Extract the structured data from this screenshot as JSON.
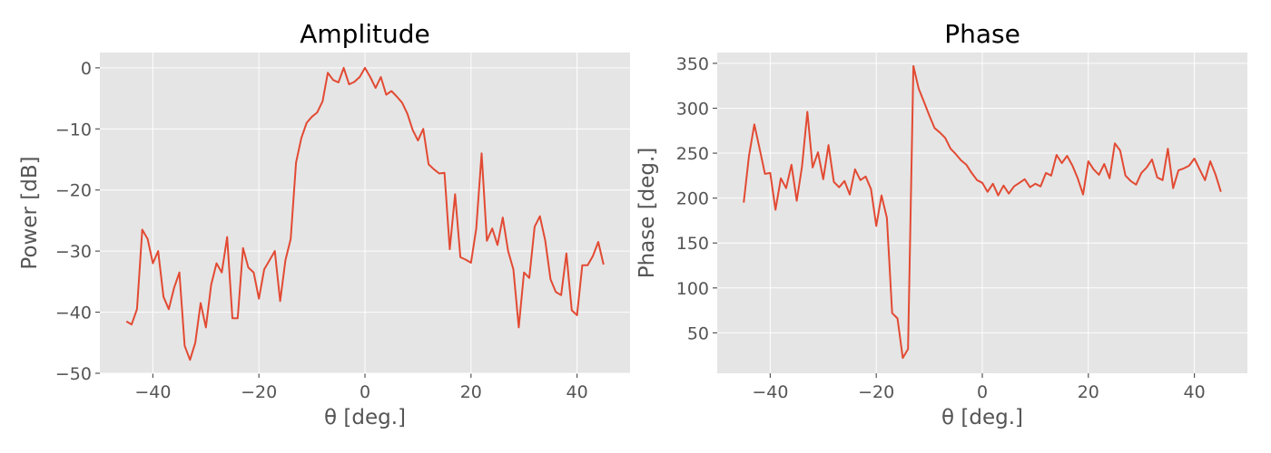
{
  "chart_data": [
    {
      "type": "line",
      "title": "Amplitude",
      "xlabel": "θ [deg.]",
      "ylabel": "Power [dB]",
      "xlim": [
        -50,
        50
      ],
      "ylim": [
        -50,
        2.5
      ],
      "xticks": [
        -40,
        -20,
        0,
        20,
        40
      ],
      "xtick_labels": [
        "−40",
        "−20",
        "0",
        "20",
        "40"
      ],
      "yticks": [
        0,
        -10,
        -20,
        -30,
        -40,
        -50
      ],
      "ytick_labels": [
        "0",
        "−10",
        "−20",
        "−30",
        "−40",
        "−50"
      ],
      "grid": true,
      "color": "#e24a33",
      "series": [
        {
          "x": [
            -45,
            -44,
            -43,
            -42,
            -41,
            -40,
            -39,
            -38,
            -37,
            -36,
            -35,
            -34,
            -33,
            -32,
            -31,
            -30,
            -29,
            -28,
            -27,
            -26,
            -25,
            -24,
            -23,
            -22,
            -21,
            -20,
            -19,
            -18,
            -17,
            -16,
            -15,
            -14,
            -13,
            -12,
            -11,
            -10,
            -9,
            -8,
            -7,
            -6,
            -5,
            -4,
            -3,
            -2,
            -1,
            0,
            1,
            2,
            3,
            4,
            5,
            6,
            7,
            8,
            9,
            10,
            11,
            12,
            13,
            14,
            15,
            16,
            17,
            18,
            19,
            20,
            21,
            22,
            23,
            24,
            25,
            26,
            27,
            28,
            29,
            30,
            31,
            32,
            33,
            34,
            35,
            36,
            37,
            38,
            39,
            40,
            41,
            42,
            43,
            44,
            45
          ],
          "y": [
            -41.5,
            -42,
            -39.5,
            -26.5,
            -28,
            -32,
            -30,
            -37.5,
            -39.5,
            -36,
            -33.5,
            -45.5,
            -47.8,
            -45,
            -38.5,
            -42.5,
            -35.5,
            -32,
            -33.5,
            -27.7,
            -41,
            -41,
            -29.5,
            -32.7,
            -33.5,
            -37.8,
            -33,
            -31.5,
            -30,
            -38.2,
            -31.5,
            -28,
            -15.5,
            -11.5,
            -9,
            -8,
            -7.3,
            -5.5,
            -0.8,
            -2,
            -2.4,
            0,
            -2.7,
            -2.3,
            -1.5,
            0,
            -1.5,
            -3.3,
            -1.5,
            -4.4,
            -3.8,
            -4.7,
            -5.7,
            -7.5,
            -10.2,
            -11.9,
            -10,
            -15.8,
            -16.6,
            -17.3,
            -17.2,
            -29.7,
            -20.7,
            -31,
            -31.4,
            -31.9,
            -26.3,
            -14,
            -28.3,
            -26.3,
            -29,
            -24.5,
            -30,
            -33,
            -42.5,
            -33.5,
            -34.4,
            -26,
            -24.3,
            -28.3,
            -34.6,
            -36.7,
            -37.2,
            -30.4,
            -39.7,
            -40.5,
            -32.3,
            -32.3,
            -30.8,
            -28.5,
            -32.2
          ]
        }
      ]
    },
    {
      "type": "line",
      "title": "Phase",
      "xlabel": "θ [deg.]",
      "ylabel": "Phase [deg.]",
      "xlim": [
        -50,
        50
      ],
      "ylim": [
        5,
        362
      ],
      "xticks": [
        -40,
        -20,
        0,
        20,
        40
      ],
      "xtick_labels": [
        "−40",
        "−20",
        "0",
        "20",
        "40"
      ],
      "yticks": [
        50,
        100,
        150,
        200,
        250,
        300,
        350
      ],
      "ytick_labels": [
        "50",
        "100",
        "150",
        "200",
        "250",
        "300",
        "350"
      ],
      "grid": true,
      "color": "#e24a33",
      "series": [
        {
          "x": [
            -45,
            -44,
            -43,
            -42,
            -41,
            -40,
            -39,
            -38,
            -37,
            -36,
            -35,
            -34,
            -33,
            -32,
            -31,
            -30,
            -29,
            -28,
            -27,
            -26,
            -25,
            -24,
            -23,
            -22,
            -21,
            -20,
            -19,
            -18,
            -17,
            -16,
            -15,
            -14,
            -13,
            -12,
            -11,
            -10,
            -9,
            -8,
            -7,
            -6,
            -5,
            -4,
            -3,
            -2,
            -1,
            0,
            1,
            2,
            3,
            4,
            5,
            6,
            7,
            8,
            9,
            10,
            11,
            12,
            13,
            14,
            15,
            16,
            17,
            18,
            19,
            20,
            21,
            22,
            23,
            24,
            25,
            26,
            27,
            28,
            29,
            30,
            31,
            32,
            33,
            34,
            35,
            36,
            37,
            38,
            39,
            40,
            41,
            42,
            43,
            44,
            45
          ],
          "y": [
            195,
            247,
            282,
            255,
            227,
            228,
            187,
            222,
            211,
            237,
            197,
            235,
            296,
            234,
            251,
            221,
            259,
            218,
            212,
            219,
            204,
            232,
            220,
            224,
            210,
            169,
            203,
            178,
            72,
            66,
            22,
            32,
            347,
            322,
            307,
            292,
            278,
            273,
            267,
            255,
            249,
            242,
            237,
            228,
            220,
            217,
            207,
            216,
            203,
            214,
            205,
            213,
            217,
            221,
            212,
            216,
            213,
            228,
            225,
            248,
            239,
            247,
            236,
            222,
            204,
            241,
            232,
            226,
            238,
            222,
            261,
            253,
            225,
            219,
            215,
            228,
            234,
            243,
            223,
            220,
            255,
            211,
            231,
            233,
            236,
            244,
            232,
            220,
            241,
            226,
            207
          ]
        }
      ]
    }
  ]
}
